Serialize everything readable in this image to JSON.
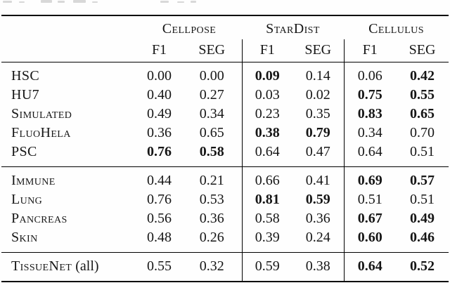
{
  "page": {
    "background": "#fefefe",
    "text_color": "#161616",
    "rule_color": "#000000"
  },
  "table": {
    "groups": [
      "Cellpose",
      "StarDist",
      "Cellulus"
    ],
    "metric_headers": [
      "F1",
      "SEG"
    ],
    "sections": [
      {
        "rows": [
          {
            "label": "HSC",
            "values": [
              {
                "text": "0.00",
                "bold": false
              },
              {
                "text": "0.00",
                "bold": false
              },
              {
                "text": "0.09",
                "bold": true
              },
              {
                "text": "0.14",
                "bold": false
              },
              {
                "text": "0.06",
                "bold": false
              },
              {
                "text": "0.42",
                "bold": true
              }
            ]
          },
          {
            "label": "HU7",
            "values": [
              {
                "text": "0.40",
                "bold": false
              },
              {
                "text": "0.27",
                "bold": false
              },
              {
                "text": "0.03",
                "bold": false
              },
              {
                "text": "0.02",
                "bold": false
              },
              {
                "text": "0.75",
                "bold": true
              },
              {
                "text": "0.55",
                "bold": true
              }
            ]
          },
          {
            "label": "Simulated",
            "values": [
              {
                "text": "0.49",
                "bold": false
              },
              {
                "text": "0.34",
                "bold": false
              },
              {
                "text": "0.23",
                "bold": false
              },
              {
                "text": "0.35",
                "bold": false
              },
              {
                "text": "0.83",
                "bold": true
              },
              {
                "text": "0.65",
                "bold": true
              }
            ]
          },
          {
            "label": "FluoHela",
            "values": [
              {
                "text": "0.36",
                "bold": false
              },
              {
                "text": "0.65",
                "bold": false
              },
              {
                "text": "0.38",
                "bold": true
              },
              {
                "text": "0.79",
                "bold": true
              },
              {
                "text": "0.34",
                "bold": false
              },
              {
                "text": "0.70",
                "bold": false
              }
            ]
          },
          {
            "label": "PSC",
            "values": [
              {
                "text": "0.76",
                "bold": true
              },
              {
                "text": "0.58",
                "bold": true
              },
              {
                "text": "0.64",
                "bold": false
              },
              {
                "text": "0.47",
                "bold": false
              },
              {
                "text": "0.64",
                "bold": false
              },
              {
                "text": "0.51",
                "bold": false
              }
            ]
          }
        ]
      },
      {
        "rows": [
          {
            "label": "Immune",
            "values": [
              {
                "text": "0.44",
                "bold": false
              },
              {
                "text": "0.21",
                "bold": false
              },
              {
                "text": "0.66",
                "bold": false
              },
              {
                "text": "0.41",
                "bold": false
              },
              {
                "text": "0.69",
                "bold": true
              },
              {
                "text": "0.57",
                "bold": true
              }
            ]
          },
          {
            "label": "Lung",
            "values": [
              {
                "text": "0.76",
                "bold": false
              },
              {
                "text": "0.53",
                "bold": false
              },
              {
                "text": "0.81",
                "bold": true
              },
              {
                "text": "0.59",
                "bold": true
              },
              {
                "text": "0.51",
                "bold": false
              },
              {
                "text": "0.51",
                "bold": false
              }
            ]
          },
          {
            "label": "Pancreas",
            "values": [
              {
                "text": "0.56",
                "bold": false
              },
              {
                "text": "0.36",
                "bold": false
              },
              {
                "text": "0.58",
                "bold": false
              },
              {
                "text": "0.36",
                "bold": false
              },
              {
                "text": "0.67",
                "bold": true
              },
              {
                "text": "0.49",
                "bold": true
              }
            ]
          },
          {
            "label": "Skin",
            "values": [
              {
                "text": "0.48",
                "bold": false
              },
              {
                "text": "0.26",
                "bold": false
              },
              {
                "text": "0.39",
                "bold": false
              },
              {
                "text": "0.24",
                "bold": false
              },
              {
                "text": "0.60",
                "bold": true
              },
              {
                "text": "0.46",
                "bold": true
              }
            ]
          }
        ]
      },
      {
        "rows": [
          {
            "label": "TissueNet",
            "label_suffix": " (all)",
            "values": [
              {
                "text": "0.55",
                "bold": false
              },
              {
                "text": "0.32",
                "bold": false
              },
              {
                "text": "0.59",
                "bold": false
              },
              {
                "text": "0.38",
                "bold": false
              },
              {
                "text": "0.64",
                "bold": true
              },
              {
                "text": "0.52",
                "bold": true
              }
            ]
          }
        ]
      }
    ]
  }
}
